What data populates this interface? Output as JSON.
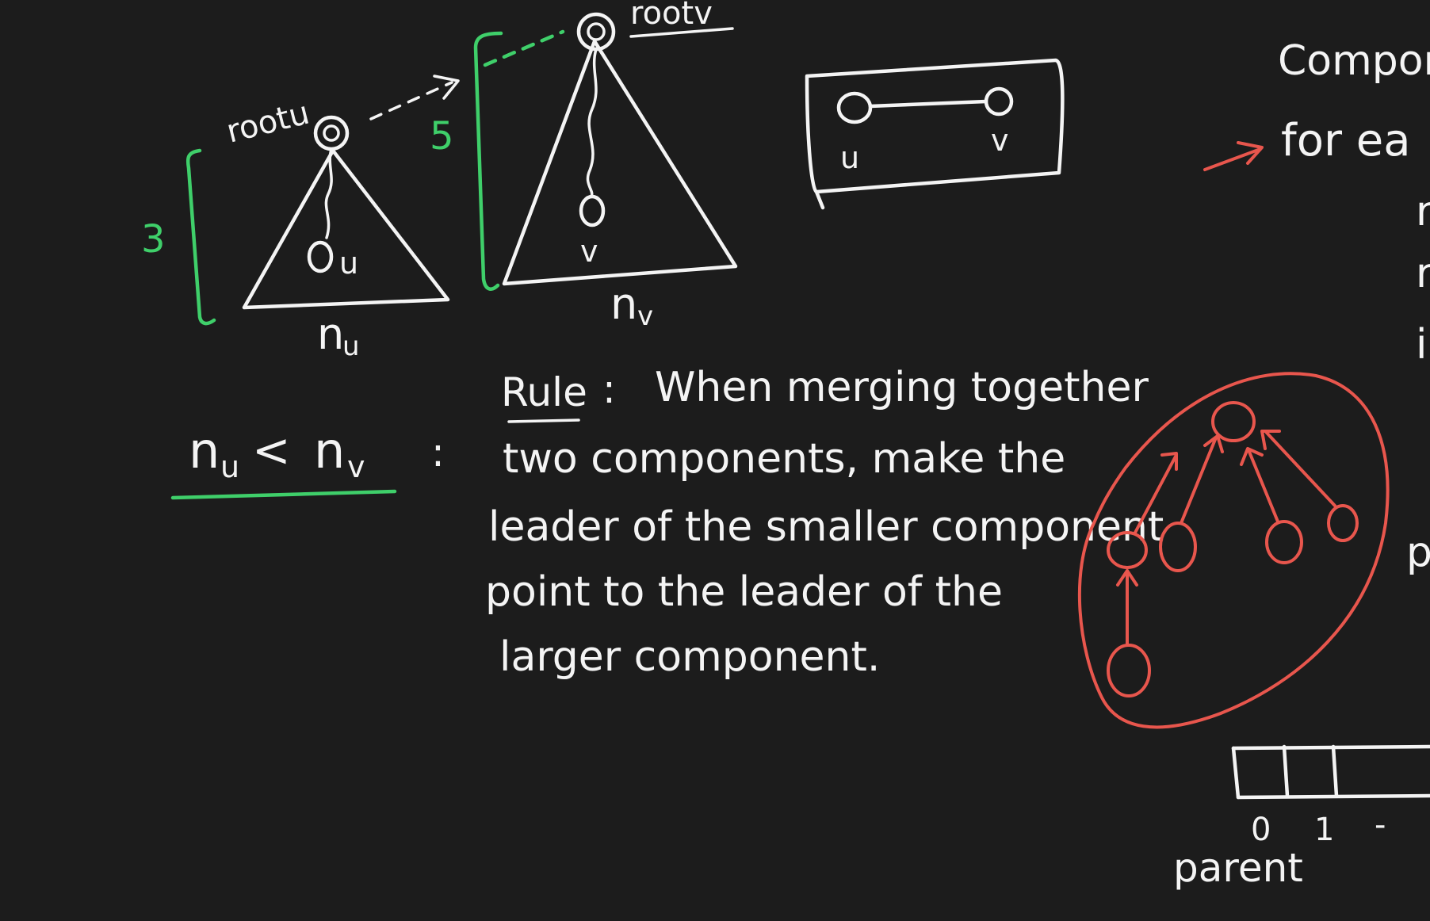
{
  "colors": {
    "background": "#1c1c1c",
    "chalk": "#f4f4f4",
    "green": "#3fcf6a",
    "red": "#e8564d"
  },
  "left_tree": {
    "root_label": "rootu",
    "node_label": "u",
    "size_label": "n",
    "size_subscript": "u",
    "height": "3"
  },
  "right_tree": {
    "root_label": "rootv",
    "node_label": "v",
    "size_label": "n",
    "size_subscript": "v",
    "height": "5"
  },
  "edge_box": {
    "left_label": "u",
    "right_label": "v"
  },
  "condition": {
    "lhs": "n",
    "lhs_sub": "u",
    "op": "<",
    "rhs": "n",
    "rhs_sub": "v",
    "colon": ":"
  },
  "rule": {
    "title": "Rule",
    "colon": ":",
    "lines": [
      "When merging together",
      "two components, make the",
      "leader of the smaller component",
      "point to the leader of the",
      "larger component."
    ]
  },
  "right_edge": {
    "lines": [
      "Compon",
      "for ea",
      "r",
      "r",
      "i",
      "p"
    ]
  },
  "parent_array": {
    "label": "parent",
    "indices": [
      "0",
      "1",
      "-"
    ]
  }
}
